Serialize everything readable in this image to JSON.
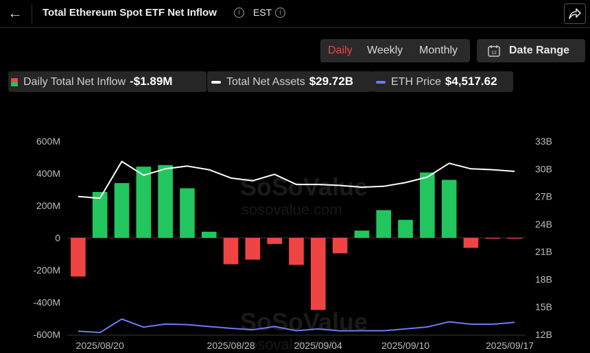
{
  "header": {
    "title": "Total Ethereum Spot ETF Net Inflow",
    "timezone": "EST"
  },
  "tabs": [
    "Daily",
    "Weekly",
    "Monthly"
  ],
  "active_tab": "Daily",
  "date_range_label": "Date Range",
  "date_range_icon_text": "12",
  "legend": [
    {
      "label": "Daily Total Net Inflow",
      "value": "-$1.89M",
      "color": "#ef4444",
      "color2": "#22c55e"
    },
    {
      "label": "Total Net Assets",
      "value": "$29.72B",
      "color": "#ffffff"
    },
    {
      "label": "ETH Price",
      "value": "$4,517.62",
      "color": "#6b7cf6"
    }
  ],
  "watermark": {
    "brand": "SoSoValue",
    "domain": "sosovalue.com"
  },
  "chart_data": {
    "type": "bar",
    "ylim_left": [
      -600,
      600
    ],
    "left_ticks": [
      "600M",
      "400M",
      "200M",
      "0",
      "-200M",
      "-400M",
      "-600M"
    ],
    "ylim_right": [
      12,
      33
    ],
    "right_ticks": [
      "33B",
      "30B",
      "27B",
      "24B",
      "21B",
      "18B",
      "15B",
      "12B"
    ],
    "x_tick_labels": [
      "2025/08/20",
      "2025/08/28",
      "2025/09/04",
      "2025/09/10",
      "2025/09/17"
    ],
    "dates": [
      "2025/08/19",
      "2025/08/20",
      "2025/08/21",
      "2025/08/22",
      "2025/08/25",
      "2025/08/26",
      "2025/08/27",
      "2025/08/28",
      "2025/08/29",
      "2025/09/02",
      "2025/09/03",
      "2025/09/04",
      "2025/09/05",
      "2025/09/08",
      "2025/09/09",
      "2025/09/10",
      "2025/09/11",
      "2025/09/12",
      "2025/09/15",
      "2025/09/16",
      "2025/09/17"
    ],
    "net_inflow_M": [
      -240,
      285,
      340,
      442,
      452,
      308,
      38,
      -164,
      -135,
      -38,
      -168,
      -447,
      -96,
      45,
      172,
      112,
      406,
      360,
      -62,
      -2,
      -1.89
    ],
    "total_net_assets_B": [
      27.0,
      26.8,
      30.8,
      29.3,
      30.0,
      30.3,
      29.9,
      29.0,
      28.7,
      29.4,
      28.3,
      28.3,
      28.2,
      28.0,
      28.1,
      28.5,
      29.1,
      30.6,
      30.0,
      29.9,
      29.72
    ],
    "eth_price_dollars": [
      4070,
      4000,
      4680,
      4270,
      4430,
      4400,
      4300,
      4210,
      4140,
      4300,
      4090,
      4180,
      4080,
      4090,
      4090,
      4180,
      4280,
      4540,
      4420,
      4420,
      4517.62
    ]
  }
}
